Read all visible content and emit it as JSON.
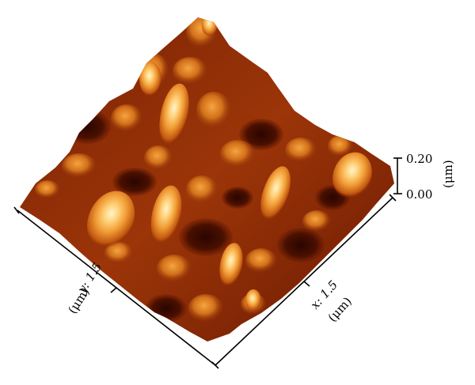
{
  "figure": {
    "z_axis": {
      "tick_top": "0.20",
      "tick_bottom": "0.00",
      "unit": "(μm)"
    },
    "y_axis": {
      "label": "y: 1.5",
      "unit": "(μm)"
    },
    "x_axis": {
      "label": "x: 1.5",
      "unit": "(μm)"
    },
    "colormap": [
      "#2a0500",
      "#5a1400",
      "#8a2a05",
      "#b84a0c",
      "#d86e18",
      "#f09a34",
      "#ffd27a",
      "#fff4d0"
    ]
  }
}
